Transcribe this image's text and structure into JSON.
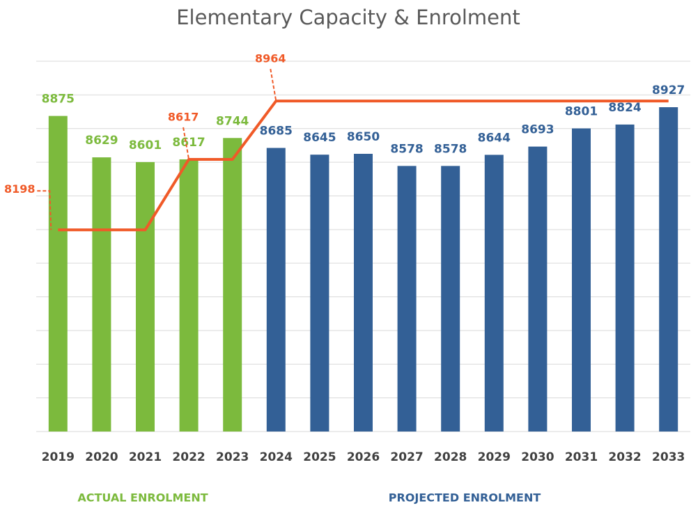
{
  "chart_data": {
    "type": "bar",
    "title": "Elementary Capacity & Enrolment",
    "categories": [
      "2019",
      "2020",
      "2021",
      "2022",
      "2023",
      "2024",
      "2025",
      "2026",
      "2027",
      "2028",
      "2029",
      "2030",
      "2031",
      "2032",
      "2033"
    ],
    "series": [
      {
        "name": "ACTUAL ENROLMENT",
        "color": "#7cba3d",
        "values": [
          8875,
          8629,
          8601,
          8617,
          8744,
          null,
          null,
          null,
          null,
          null,
          null,
          null,
          null,
          null,
          null
        ]
      },
      {
        "name": "PROJECTED ENROLMENT",
        "color": "#336096",
        "values": [
          null,
          null,
          null,
          null,
          null,
          8685,
          8645,
          8650,
          8578,
          8578,
          8644,
          8693,
          8801,
          8824,
          8927
        ]
      }
    ],
    "capacity": {
      "color": "#f05a28",
      "values": [
        8198,
        8198,
        8198,
        8617,
        8617,
        8964,
        8964,
        8964,
        8964,
        8964,
        8964,
        8964,
        8964,
        8964,
        8964
      ]
    },
    "ylim": [
      7000,
      9200
    ],
    "yticks": [
      7000,
      7200,
      7400,
      7600,
      7800,
      8000,
      8200,
      8400,
      8600,
      8800,
      9000,
      9200
    ],
    "grid": true
  }
}
